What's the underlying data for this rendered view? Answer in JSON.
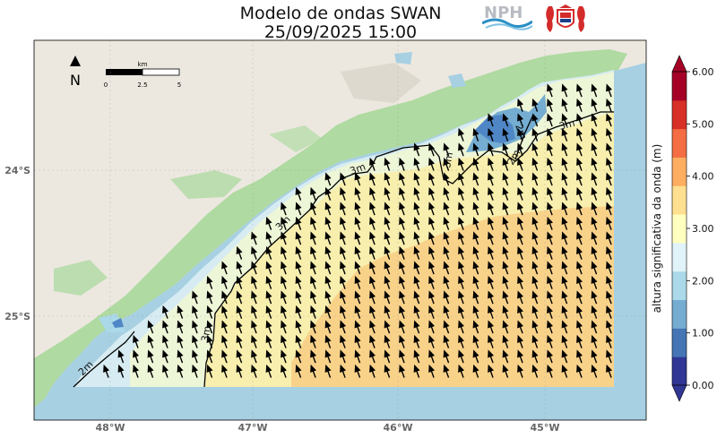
{
  "title": "Modelo de ondas SWAN",
  "datetime": "25/09/2025 15:00",
  "logos": {
    "npc_text": "NPH"
  },
  "map": {
    "lon_labels": [
      "48°W",
      "47°W",
      "46°W",
      "45°W"
    ],
    "lat_labels": [
      "24°S",
      "25°S"
    ],
    "north_label": "N",
    "scalebar": {
      "unit": "km",
      "ticks": [
        "0",
        "2.5",
        "5"
      ]
    },
    "contour_labels": [
      "2m",
      "2m",
      "3m",
      "3m",
      "3m",
      "3m",
      "3m",
      "2m"
    ],
    "colors": {
      "sea": "#a7d0e2",
      "land": "#ece8e0",
      "forest": "#a8d89a",
      "h2_2_5": "#d7ecf2",
      "h2_5_3": "#eef6d8",
      "h3_3_5": "#f8efae",
      "h3_5_4": "#f9d28a",
      "low": "#4f87c6"
    },
    "wave_direction": "NNW"
  },
  "colorbar": {
    "label": "altura significativa da onda (m)",
    "ticks": [
      "0.00",
      "1.00",
      "2.00",
      "3.00",
      "4.00",
      "5.00",
      "6.00"
    ],
    "colors": [
      "#313695",
      "#4575b4",
      "#74add1",
      "#abd9e9",
      "#e0f3f8",
      "#ffffbf",
      "#fee090",
      "#fdae61",
      "#f46d43",
      "#d73027",
      "#a50026"
    ]
  }
}
